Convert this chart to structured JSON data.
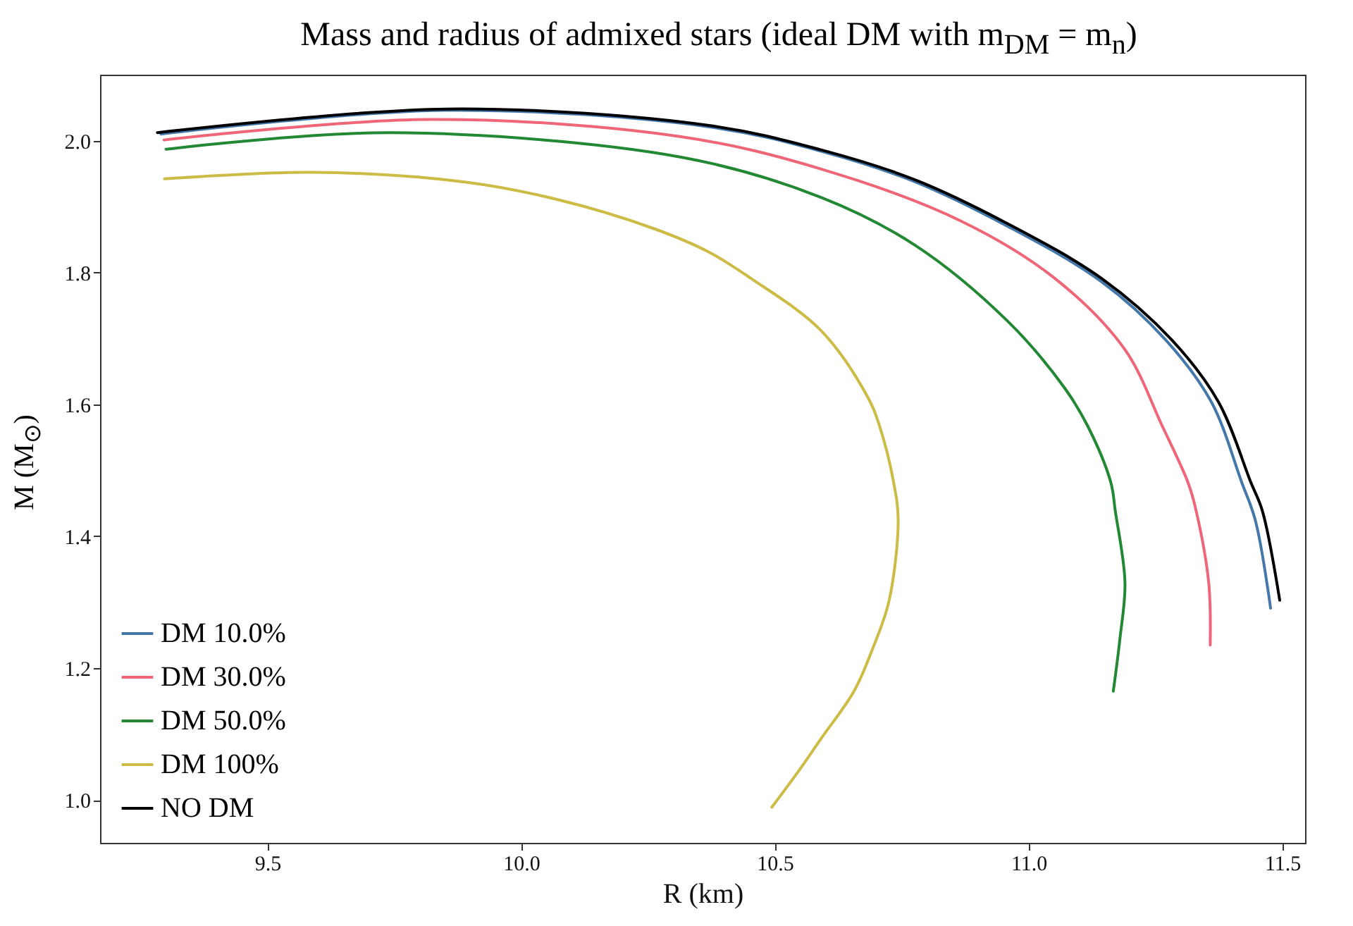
{
  "chart_data": {
    "type": "line",
    "title": "Mass and radius of admixed stars (ideal DM with m$_{DM}$ = m$_{n}$)",
    "xlabel": "R (km)",
    "ylabel": "M (M$_{⊙}$)",
    "xlim": [
      9.17,
      11.545
    ],
    "ylim": [
      0.935,
      2.1
    ],
    "xticks": [
      9.5,
      {
        "value": 10,
        "label": "10.0"
      },
      10.5,
      {
        "value": 11,
        "label": "11.0"
      },
      11.5
    ],
    "yticks": [
      {
        "value": 1,
        "label": "1.0"
      },
      1.2,
      1.4,
      1.6,
      1.8,
      {
        "value": 2,
        "label": "2.0"
      }
    ],
    "grid": false,
    "legend": "bottom left",
    "line_style": "solid",
    "marker": "none",
    "series": [
      {
        "name": "DM 10.0%",
        "color": "#4477aa",
        "x": [
          9.29,
          9.85,
          10.37,
          10.591,
          10.775,
          10.959,
          11.144,
          11.27,
          11.36,
          11.42,
          11.447,
          11.477
        ],
        "values": [
          2.01,
          2.046,
          2.021,
          1.984,
          1.938,
          1.87,
          1.786,
          1.698,
          1.604,
          1.482,
          1.424,
          1.291
        ]
      },
      {
        "name": "DM 30.0%",
        "color": "#ee6677",
        "x": [
          9.296,
          9.818,
          10.315,
          10.591,
          10.867,
          11.052,
          11.19,
          11.263,
          11.314,
          11.328,
          11.355,
          11.358
        ],
        "values": [
          2.001,
          2.032,
          2.006,
          1.957,
          1.878,
          1.791,
          1.683,
          1.568,
          1.482,
          1.446,
          1.33,
          1.235
        ]
      },
      {
        "name": "DM 50.0%",
        "color": "#228833",
        "x": [
          9.3,
          9.744,
          10.315,
          10.591,
          10.775,
          10.959,
          11.07,
          11.116,
          11.162,
          11.171,
          11.19,
          11.18,
          11.167
        ],
        "values": [
          1.987,
          2.012,
          1.975,
          1.914,
          1.842,
          1.726,
          1.626,
          1.568,
          1.482,
          1.438,
          1.33,
          1.244,
          1.165
        ]
      },
      {
        "name": "DM 100%",
        "color": "#ccbb44",
        "x": [
          9.297,
          9.588,
          9.891,
          10.075,
          10.26,
          10.37,
          10.453,
          10.591,
          10.683,
          10.706,
          10.734,
          10.743,
          10.725,
          10.693,
          10.656,
          10.591,
          10.545,
          10.494
        ],
        "values": [
          1.942,
          1.952,
          1.937,
          1.91,
          1.867,
          1.831,
          1.791,
          1.712,
          1.611,
          1.568,
          1.482,
          1.424,
          1.302,
          1.23,
          1.165,
          1.093,
          1.042,
          0.989
        ]
      },
      {
        "name": "NO DM",
        "color": "#000000",
        "x": [
          9.283,
          9.854,
          10.37,
          10.591,
          10.775,
          10.959,
          11.144,
          11.282,
          11.374,
          11.438,
          11.461,
          11.495
        ],
        "values": [
          2.012,
          2.048,
          2.023,
          1.986,
          1.941,
          1.874,
          1.791,
          1.698,
          1.604,
          1.482,
          1.438,
          1.303
        ]
      }
    ]
  }
}
